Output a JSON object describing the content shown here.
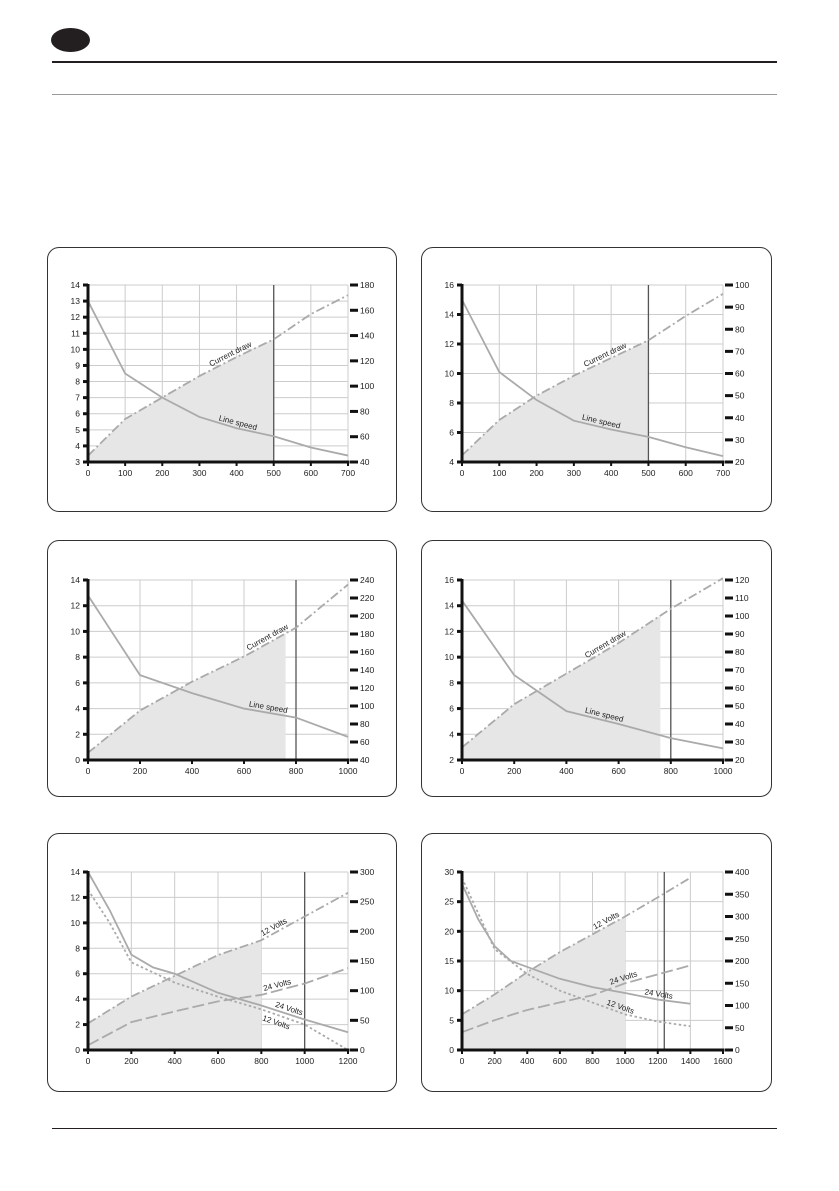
{
  "colors": {
    "fill": "#e6e6e6",
    "grid": "#cccccc",
    "curve": "#aaaaaa",
    "marker_line": "#555555",
    "axis": "#111111"
  },
  "chart_data": [
    {
      "type": "line",
      "xlim": [
        0,
        700
      ],
      "xticks": [
        0,
        100,
        200,
        300,
        400,
        500,
        600,
        700
      ],
      "ylim_left": [
        3,
        14
      ],
      "yticks_left": [
        3,
        4,
        5,
        6,
        7,
        8,
        9,
        10,
        11,
        12,
        13,
        14
      ],
      "ylim_right": [
        40,
        180
      ],
      "yticks_right": [
        40,
        60,
        80,
        100,
        120,
        140,
        160,
        180
      ],
      "grid": true,
      "marker_x": 500,
      "shade_to_x": 500,
      "shade_series": 1,
      "series": [
        {
          "name": "Line speed",
          "axis": "left",
          "style": "solid",
          "x": [
            0,
            100,
            200,
            300,
            400,
            500,
            600,
            700
          ],
          "y": [
            13,
            8.5,
            7,
            5.8,
            5.1,
            4.6,
            3.9,
            3.4
          ],
          "label_x": 400,
          "label_side": "above"
        },
        {
          "name": "Current draw",
          "axis": "right",
          "style": "dashdot",
          "x": [
            0,
            100,
            200,
            300,
            400,
            500,
            600,
            700
          ],
          "y": [
            45,
            74,
            91,
            108,
            123,
            137,
            157,
            172
          ],
          "label_x": 390,
          "label_side": "above"
        }
      ]
    },
    {
      "type": "line",
      "xlim": [
        0,
        700
      ],
      "xticks": [
        0,
        100,
        200,
        300,
        400,
        500,
        600,
        700
      ],
      "ylim_left": [
        4,
        16
      ],
      "yticks_left": [
        4,
        6,
        8,
        10,
        12,
        14,
        16
      ],
      "ylim_right": [
        20,
        100
      ],
      "yticks_right": [
        20,
        30,
        40,
        50,
        60,
        70,
        80,
        90,
        100
      ],
      "grid": true,
      "marker_x": 500,
      "shade_to_x": 500,
      "shade_series": 1,
      "series": [
        {
          "name": "Line speed",
          "axis": "left",
          "style": "solid",
          "x": [
            0,
            100,
            200,
            300,
            400,
            500,
            600,
            700
          ],
          "y": [
            15,
            10.1,
            8.2,
            6.8,
            6.2,
            5.7,
            5,
            4.4
          ],
          "label_x": 370,
          "label_side": "above"
        },
        {
          "name": "Current draw",
          "axis": "right",
          "style": "dashdot",
          "x": [
            0,
            100,
            200,
            300,
            400,
            500,
            600,
            700
          ],
          "y": [
            23,
            39,
            50,
            59,
            67,
            75,
            86,
            96
          ],
          "label_x": 390,
          "label_side": "above"
        }
      ]
    },
    {
      "type": "line",
      "xlim": [
        0,
        1000
      ],
      "xticks": [
        0,
        200,
        400,
        600,
        800,
        1000
      ],
      "ylim_left": [
        0,
        14
      ],
      "yticks_left": [
        0,
        2,
        4,
        6,
        8,
        10,
        12,
        14
      ],
      "ylim_right": [
        40,
        240
      ],
      "yticks_right": [
        40,
        60,
        80,
        100,
        120,
        140,
        160,
        180,
        200,
        220,
        240
      ],
      "grid": true,
      "marker_x": 800,
      "shade_to_x": 760,
      "shade_series": 1,
      "series": [
        {
          "name": "Line speed",
          "axis": "left",
          "style": "solid",
          "x": [
            0,
            200,
            400,
            600,
            800,
            1000
          ],
          "y": [
            12.8,
            6.6,
            5.2,
            4,
            3.3,
            1.8
          ],
          "label_x": 690,
          "label_side": "above"
        },
        {
          "name": "Current draw",
          "axis": "right",
          "style": "dashdot",
          "x": [
            0,
            200,
            400,
            600,
            800,
            1000
          ],
          "y": [
            48,
            95,
            127,
            155,
            187,
            235
          ],
          "label_x": 700,
          "label_side": "above"
        }
      ]
    },
    {
      "type": "line",
      "xlim": [
        0,
        1000
      ],
      "xticks": [
        0,
        200,
        400,
        600,
        800,
        1000
      ],
      "ylim_left": [
        2,
        16
      ],
      "yticks_left": [
        2,
        4,
        6,
        8,
        10,
        12,
        14,
        16
      ],
      "ylim_right": [
        20,
        120
      ],
      "yticks_right": [
        20,
        30,
        40,
        50,
        60,
        70,
        80,
        90,
        100,
        110,
        120
      ],
      "grid": true,
      "marker_x": 800,
      "shade_to_x": 760,
      "shade_series": 1,
      "series": [
        {
          "name": "Line speed",
          "axis": "left",
          "style": "solid",
          "x": [
            0,
            200,
            400,
            600,
            800,
            1000
          ],
          "y": [
            14.4,
            8.6,
            5.8,
            4.8,
            3.7,
            2.9
          ],
          "label_x": 540,
          "label_side": "above"
        },
        {
          "name": "Current draw",
          "axis": "right",
          "style": "dashdot",
          "x": [
            0,
            200,
            400,
            600,
            800,
            1000
          ],
          "y": [
            27,
            51,
            68,
            85,
            104,
            121
          ],
          "label_x": 560,
          "label_side": "above"
        }
      ]
    },
    {
      "type": "line",
      "xlim": [
        0,
        1200
      ],
      "xticks": [
        0,
        200,
        400,
        600,
        800,
        1000,
        1200
      ],
      "ylim_left": [
        0,
        14
      ],
      "yticks_left": [
        0,
        2,
        4,
        6,
        8,
        10,
        12,
        14
      ],
      "ylim_right": [
        0,
        300
      ],
      "yticks_right": [
        0,
        50,
        100,
        150,
        200,
        250,
        300
      ],
      "grid": true,
      "marker_x": 1000,
      "shade_to_x": 800,
      "shade_series": 2,
      "series": [
        {
          "name": "24 Volts",
          "axis": "left",
          "style": "solid",
          "x": [
            0,
            100,
            200,
            300,
            400,
            600,
            800,
            1000,
            1200
          ],
          "y": [
            14,
            11,
            7.5,
            6.5,
            6,
            4.5,
            3.5,
            2.4,
            1.4
          ],
          "label_x": 920,
          "label_side": "above"
        },
        {
          "name": "12 Volts",
          "axis": "left",
          "style": "dotted",
          "x": [
            0,
            100,
            200,
            400,
            600,
            800,
            1000,
            1200
          ],
          "y": [
            12.6,
            10,
            6.9,
            5.3,
            4.2,
            3.2,
            2,
            0
          ],
          "label_x": 880,
          "label_side": "below"
        },
        {
          "name": "12 Volts",
          "axis": "right",
          "style": "dashdot",
          "x": [
            0,
            200,
            400,
            600,
            800,
            1000,
            1200
          ],
          "y": [
            45,
            90,
            125,
            160,
            185,
            225,
            265
          ],
          "label_x": 870,
          "label_side": "above"
        },
        {
          "name": "24 Volts",
          "axis": "right",
          "style": "longdash",
          "x": [
            0,
            200,
            400,
            600,
            800,
            1000,
            1200
          ],
          "y": [
            8,
            47,
            65,
            82,
            93,
            112,
            138
          ],
          "label_x": 880,
          "label_side": "above"
        }
      ]
    },
    {
      "type": "line",
      "xlim": [
        0,
        1600
      ],
      "xticks": [
        0,
        200,
        400,
        600,
        800,
        1000,
        1200,
        1400,
        1600
      ],
      "ylim_left": [
        0,
        30
      ],
      "yticks_left": [
        0,
        5,
        10,
        15,
        20,
        25,
        30
      ],
      "ylim_right": [
        0,
        400
      ],
      "yticks_right": [
        0,
        50,
        100,
        150,
        200,
        250,
        300,
        350,
        400
      ],
      "grid": true,
      "marker_x": 1240,
      "shade_to_x": 1000,
      "shade_series": 2,
      "series": [
        {
          "name": "24 Volts",
          "axis": "left",
          "style": "solid",
          "x": [
            0,
            100,
            200,
            300,
            400,
            600,
            800,
            1000,
            1200,
            1400
          ],
          "y": [
            28,
            22,
            17.5,
            15,
            14,
            12,
            10.6,
            9.6,
            8.5,
            7.8
          ],
          "label_x": 1200,
          "label_side": "above"
        },
        {
          "name": "12 Volts",
          "axis": "left",
          "style": "dotted",
          "x": [
            0,
            100,
            200,
            400,
            600,
            800,
            1000,
            1200,
            1400
          ],
          "y": [
            29,
            23,
            17,
            12.8,
            10,
            8,
            6,
            4.8,
            4
          ],
          "label_x": 960,
          "label_side": "above"
        },
        {
          "name": "12 Volts",
          "axis": "right",
          "style": "dashdot",
          "x": [
            0,
            200,
            400,
            600,
            800,
            1000,
            1200,
            1400
          ],
          "y": [
            80,
            125,
            175,
            220,
            260,
            300,
            343,
            387
          ],
          "label_x": 900,
          "label_side": "above"
        },
        {
          "name": "24 Volts",
          "axis": "right",
          "style": "longdash",
          "x": [
            0,
            200,
            400,
            600,
            800,
            1000,
            1200,
            1400
          ],
          "y": [
            40,
            67,
            90,
            107,
            123,
            150,
            170,
            190
          ],
          "label_x": 1000,
          "label_side": "above"
        }
      ]
    }
  ]
}
